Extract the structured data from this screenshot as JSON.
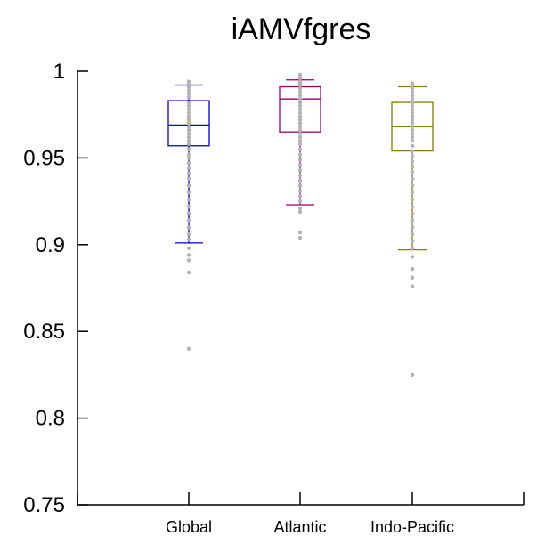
{
  "chart_data": {
    "type": "boxplot",
    "title": "iAMVfgres",
    "xlabel": "",
    "ylabel": "",
    "ylim": [
      0.75,
      1.0
    ],
    "yticks": [
      {
        "value": 0.75,
        "label": "0.75"
      },
      {
        "value": 0.8,
        "label": "0.8"
      },
      {
        "value": 0.85,
        "label": "0.85"
      },
      {
        "value": 0.9,
        "label": "0.9"
      },
      {
        "value": 0.95,
        "label": "0.95"
      },
      {
        "value": 1.0,
        "label": "1"
      }
    ],
    "grid": false,
    "categories": [
      "Global",
      "Atlantic",
      "Indo-Pacific"
    ],
    "boxes": [
      {
        "category": "Global",
        "color": "#0000cc",
        "whisker_low": 0.901,
        "q1": 0.957,
        "median": 0.969,
        "q3": 0.983,
        "whisker_high": 0.992,
        "points": [
          0.994,
          0.993,
          0.991,
          0.989,
          0.987,
          0.985,
          0.982,
          0.98,
          0.978,
          0.976,
          0.974,
          0.972,
          0.97,
          0.968,
          0.966,
          0.964,
          0.962,
          0.96,
          0.958,
          0.955,
          0.952,
          0.95,
          0.947,
          0.944,
          0.941,
          0.938,
          0.934,
          0.93,
          0.926,
          0.922,
          0.918,
          0.914,
          0.91,
          0.906,
          0.903,
          0.898,
          0.894,
          0.891,
          0.884,
          0.84
        ]
      },
      {
        "category": "Atlantic",
        "color": "#990066",
        "whisker_low": 0.923,
        "q1": 0.965,
        "median": 0.984,
        "q3": 0.991,
        "whisker_high": 0.995,
        "points": [
          0.998,
          0.996,
          0.994,
          0.993,
          0.992,
          0.99,
          0.988,
          0.986,
          0.984,
          0.982,
          0.98,
          0.978,
          0.976,
          0.974,
          0.972,
          0.97,
          0.968,
          0.966,
          0.964,
          0.962,
          0.96,
          0.958,
          0.955,
          0.952,
          0.949,
          0.946,
          0.943,
          0.94,
          0.937,
          0.934,
          0.931,
          0.928,
          0.925,
          0.921,
          0.919,
          0.907,
          0.904
        ]
      },
      {
        "category": "Indo-Pacific",
        "color": "#808000",
        "whisker_low": 0.897,
        "q1": 0.954,
        "median": 0.968,
        "q3": 0.982,
        "whisker_high": 0.991,
        "points": [
          0.993,
          0.992,
          0.99,
          0.988,
          0.986,
          0.984,
          0.982,
          0.98,
          0.978,
          0.976,
          0.974,
          0.972,
          0.97,
          0.968,
          0.966,
          0.964,
          0.962,
          0.96,
          0.957,
          0.954,
          0.951,
          0.948,
          0.945,
          0.942,
          0.938,
          0.934,
          0.93,
          0.926,
          0.922,
          0.918,
          0.914,
          0.91,
          0.906,
          0.902,
          0.898,
          0.893,
          0.886,
          0.881,
          0.876,
          0.825
        ]
      }
    ],
    "point_color": "#b3b3b3"
  }
}
